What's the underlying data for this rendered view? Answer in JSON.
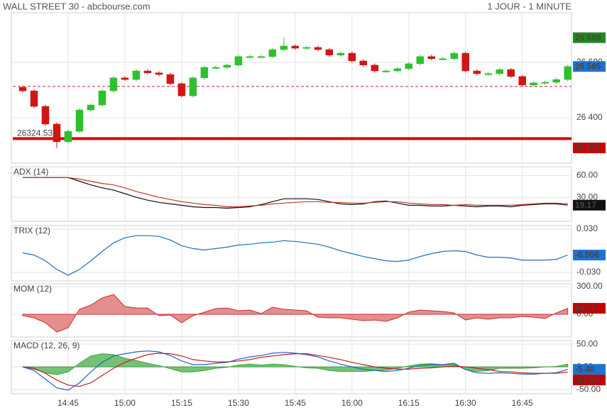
{
  "header": {
    "title": "WALL STREET 30 - abcbourse.com",
    "period": "1 JOUR - 1 MINUTE"
  },
  "chart_data": [
    {
      "type": "candlestick",
      "x": [
        "14:33",
        "14:36",
        "14:39",
        "14:42",
        "14:45",
        "14:48",
        "14:51",
        "14:54",
        "14:57",
        "15:00",
        "15:03",
        "15:06",
        "15:09",
        "15:12",
        "15:15",
        "15:18",
        "15:21",
        "15:24",
        "15:27",
        "15:30",
        "15:33",
        "15:36",
        "15:39",
        "15:42",
        "15:45",
        "15:48",
        "15:51",
        "15:54",
        "15:57",
        "16:00",
        "16:03",
        "16:06",
        "16:09",
        "16:12",
        "16:15",
        "16:18",
        "16:21",
        "16:24",
        "16:27",
        "16:30",
        "16:33",
        "16:36",
        "16:39",
        "16:42",
        "16:45",
        "16:48",
        "16:51",
        "16:54",
        "16:57"
      ],
      "xlim": [
        "14:30",
        "16:58"
      ],
      "xticks": [
        "14:45",
        "15:00",
        "15:15",
        "15:30",
        "15:45",
        "16:00",
        "16:15",
        "16:30",
        "16:45"
      ],
      "open": [
        26510,
        26497,
        26441,
        26377,
        26313,
        26351,
        26428,
        26446,
        26497,
        26544,
        26538,
        26569,
        26562,
        26556,
        26523,
        26479,
        26544,
        26582,
        26582,
        26590,
        26621,
        26621,
        26621,
        26646,
        26659,
        26651,
        26654,
        26646,
        26626,
        26633,
        26605,
        26590,
        26569,
        26569,
        26577,
        26595,
        26621,
        26613,
        26613,
        26633,
        26569,
        26559,
        26559,
        26574,
        26549,
        26518,
        26526,
        26528,
        26538
      ],
      "high": [
        26516,
        26503,
        26447,
        26383,
        26357,
        26434,
        26452,
        26503,
        26550,
        26550,
        26575,
        26575,
        26568,
        26562,
        26529,
        26550,
        26588,
        26588,
        26596,
        26627,
        26627,
        26627,
        26652,
        26689,
        26665,
        26660,
        26660,
        26652,
        26639,
        26639,
        26611,
        26596,
        26575,
        26583,
        26601,
        26627,
        26627,
        26619,
        26639,
        26639,
        26575,
        26565,
        26580,
        26580,
        26555,
        26532,
        26534,
        26544,
        26591
      ],
      "low": [
        26491,
        26435,
        26371,
        26291,
        26307,
        26345,
        26422,
        26440,
        26491,
        26532,
        26532,
        26556,
        26550,
        26517,
        26473,
        26473,
        26538,
        26576,
        26576,
        26584,
        26615,
        26615,
        26615,
        26640,
        26645,
        26645,
        26640,
        26620,
        26620,
        26599,
        26584,
        26563,
        26563,
        26563,
        26571,
        26589,
        26607,
        26607,
        26607,
        26563,
        26553,
        26553,
        26553,
        26543,
        26512,
        26512,
        26520,
        26522,
        26532
      ],
      "close": [
        26497,
        26441,
        26377,
        26313,
        26351,
        26428,
        26446,
        26497,
        26544,
        26538,
        26569,
        26562,
        26556,
        26523,
        26479,
        26544,
        26582,
        26582,
        26590,
        26621,
        26621,
        26621,
        26646,
        26659,
        26651,
        26654,
        26646,
        26626,
        26633,
        26605,
        26590,
        26569,
        26569,
        26577,
        26595,
        26621,
        26613,
        26613,
        26633,
        26569,
        26559,
        26559,
        26574,
        26549,
        26518,
        26526,
        26528,
        26538,
        26585
      ],
      "up_color": "#2fc02f",
      "down_color": "#d01515",
      "ylim": [
        26236,
        26779
      ],
      "yticks": [
        {
          "value": 26600,
          "label": "26 600"
        },
        {
          "value": 26400,
          "label": "26 400"
        }
      ],
      "reference_lines": [
        {
          "value": 26324.53,
          "color": "#e00000",
          "style": "solid"
        },
        {
          "value": 26513,
          "color": "#cc2222",
          "style": "dashed"
        }
      ],
      "value_boxes": [
        {
          "value": 26689,
          "label": "26 689",
          "color": "#1f8a1f"
        },
        {
          "value": 26585,
          "label": "26 585",
          "color": "#1e73d2"
        },
        {
          "value": 26291,
          "label": "26 291",
          "color": "#cc0000"
        }
      ]
    },
    {
      "type": "line",
      "title": "ADX (14)",
      "title_color": "#222",
      "ylim": [
        -3,
        72
      ],
      "yticks": [
        {
          "value": 60,
          "label": "60.00"
        },
        {
          "value": 30,
          "label": "30.00"
        }
      ],
      "series": [
        {
          "color": "#111111",
          "values": [
            57,
            57,
            57,
            57,
            57,
            52,
            47,
            43,
            40,
            35,
            30,
            26,
            23,
            21,
            19,
            17,
            16,
            16,
            15,
            16,
            17,
            20,
            24,
            28,
            28,
            28,
            27,
            24,
            21,
            20,
            21,
            24,
            25,
            22,
            19,
            19,
            18,
            18,
            19,
            18,
            17,
            18,
            18,
            17,
            19,
            20,
            21,
            21,
            19.17
          ]
        },
        {
          "color": "#c0392b",
          "values": [
            57,
            57,
            57,
            57,
            57,
            55,
            52,
            49,
            47,
            43,
            38,
            34,
            30,
            27,
            24,
            22,
            20,
            19,
            17,
            17,
            18,
            19,
            21,
            22,
            23,
            24,
            24,
            23,
            23,
            22,
            22,
            23,
            24,
            24,
            22,
            21,
            20,
            20,
            19,
            20,
            19,
            19,
            19,
            19,
            20,
            21,
            22,
            22,
            21
          ]
        }
      ],
      "value_boxes": [
        {
          "value": 19.17,
          "color": "#111111"
        }
      ]
    },
    {
      "type": "line",
      "title": "TRIX (12)",
      "title_color": "#1f6fbf",
      "ylim": [
        -0.042,
        0.035
      ],
      "yticks": [
        {
          "value": 0.03,
          "label": "0.030"
        },
        {
          "value": -0.03,
          "label": "-0.030"
        }
      ],
      "series": [
        {
          "color": "#1f6fbf",
          "values": [
            -0.003,
            -0.006,
            -0.014,
            -0.026,
            -0.034,
            -0.026,
            -0.014,
            -0.001,
            0.011,
            0.018,
            0.021,
            0.021,
            0.02,
            0.015,
            0.007,
            0.003,
            0.001,
            0.003,
            0.005,
            0.008,
            0.009,
            0.011,
            0.012,
            0.014,
            0.013,
            0.011,
            0.009,
            0.005,
            0,
            -0.004,
            -0.008,
            -0.011,
            -0.014,
            -0.015,
            -0.013,
            -0.008,
            -0.004,
            -0.001,
            0,
            -0.001,
            -0.006,
            -0.009,
            -0.009,
            -0.01,
            -0.013,
            -0.013,
            -0.013,
            -0.012,
            -0.006
          ]
        }
      ],
      "value_boxes": [
        {
          "value": -0.006,
          "color": "#1e73d2"
        }
      ]
    },
    {
      "type": "area",
      "title": "MOM (12)",
      "title_color": "#c02020",
      "ylim": [
        -246,
        331
      ],
      "yticks": [
        {
          "value": 300,
          "label": "300.00"
        },
        {
          "value": 0,
          "label": "0.00"
        }
      ],
      "series": [
        {
          "color": "#c83030",
          "fill": "#e07a7a",
          "values": [
            -15,
            -38,
            -92,
            -192,
            -146,
            54,
            100,
            177,
            215,
            85,
            69,
            69,
            -15,
            -8,
            -92,
            -15,
            23,
            62,
            69,
            38,
            46,
            8,
            77,
            54,
            46,
            38,
            -31,
            -38,
            -38,
            -54,
            -69,
            -62,
            -77,
            -38,
            23,
            46,
            38,
            31,
            15,
            -62,
            -38,
            -54,
            -38,
            -38,
            -23,
            -31,
            -46,
            15,
            64.77
          ]
        }
      ],
      "value_boxes": [
        {
          "value": 64.77,
          "color": "#c00000"
        }
      ]
    },
    {
      "type": "combo",
      "title": "MACD (12, 26, 9)",
      "title_color": "#1f6fbf",
      "ylim": [
        -59,
        58
      ],
      "yticks": [
        {
          "value": 50,
          "label": "50.00"
        },
        {
          "value": 0,
          "label": "0.00"
        },
        {
          "value": -50,
          "label": "-50.00"
        }
      ],
      "series": [
        {
          "type": "area",
          "color": "#3f9f3f",
          "fill": "#5cb85c",
          "values": [
            0,
            -5,
            -13,
            -17,
            -11,
            8,
            24,
            29,
            27,
            19,
            14,
            8,
            3,
            -4,
            -11,
            -11,
            -8,
            -3,
            -1,
            4,
            6,
            4,
            6,
            5,
            1,
            -2,
            -3,
            -8,
            -10,
            -10,
            -10,
            -8,
            -7,
            -3,
            2,
            6,
            7,
            5,
            6,
            -6,
            -10,
            -8,
            -3,
            -3,
            -3,
            -2,
            0,
            1,
            6.18
          ]
        },
        {
          "type": "line",
          "color": "#2060d0",
          "values": [
            0,
            -8,
            -27,
            -46,
            -51,
            -35,
            -11,
            10,
            24,
            29,
            33,
            35,
            33,
            25,
            13,
            5,
            5,
            8,
            10,
            17,
            22,
            25,
            30,
            32,
            30,
            27,
            22,
            13,
            6,
            0,
            -5,
            -8,
            -10,
            -8,
            -3,
            3,
            5,
            5,
            8,
            -6,
            -13,
            -14,
            -13,
            -14,
            -16,
            -16,
            -14,
            -13,
            -5.4
          ]
        },
        {
          "type": "line",
          "color": "#c02020",
          "values": [
            0,
            -3,
            -14,
            -29,
            -40,
            -43,
            -35,
            -19,
            -3,
            10,
            19,
            27,
            30,
            29,
            24,
            16,
            13,
            11,
            11,
            13,
            16,
            21,
            24,
            27,
            29,
            29,
            25,
            21,
            16,
            10,
            5,
            0,
            -3,
            -5,
            -5,
            -3,
            -2,
            0,
            2,
            0,
            -3,
            -6,
            -10,
            -11,
            -13,
            -14,
            -14,
            -14,
            -11.58
          ]
        }
      ],
      "value_boxes": [
        {
          "value": -5.4,
          "label": "-5.40",
          "color": "#1e73d2"
        },
        {
          "value": -11.58,
          "color": "#c00000"
        }
      ]
    }
  ]
}
